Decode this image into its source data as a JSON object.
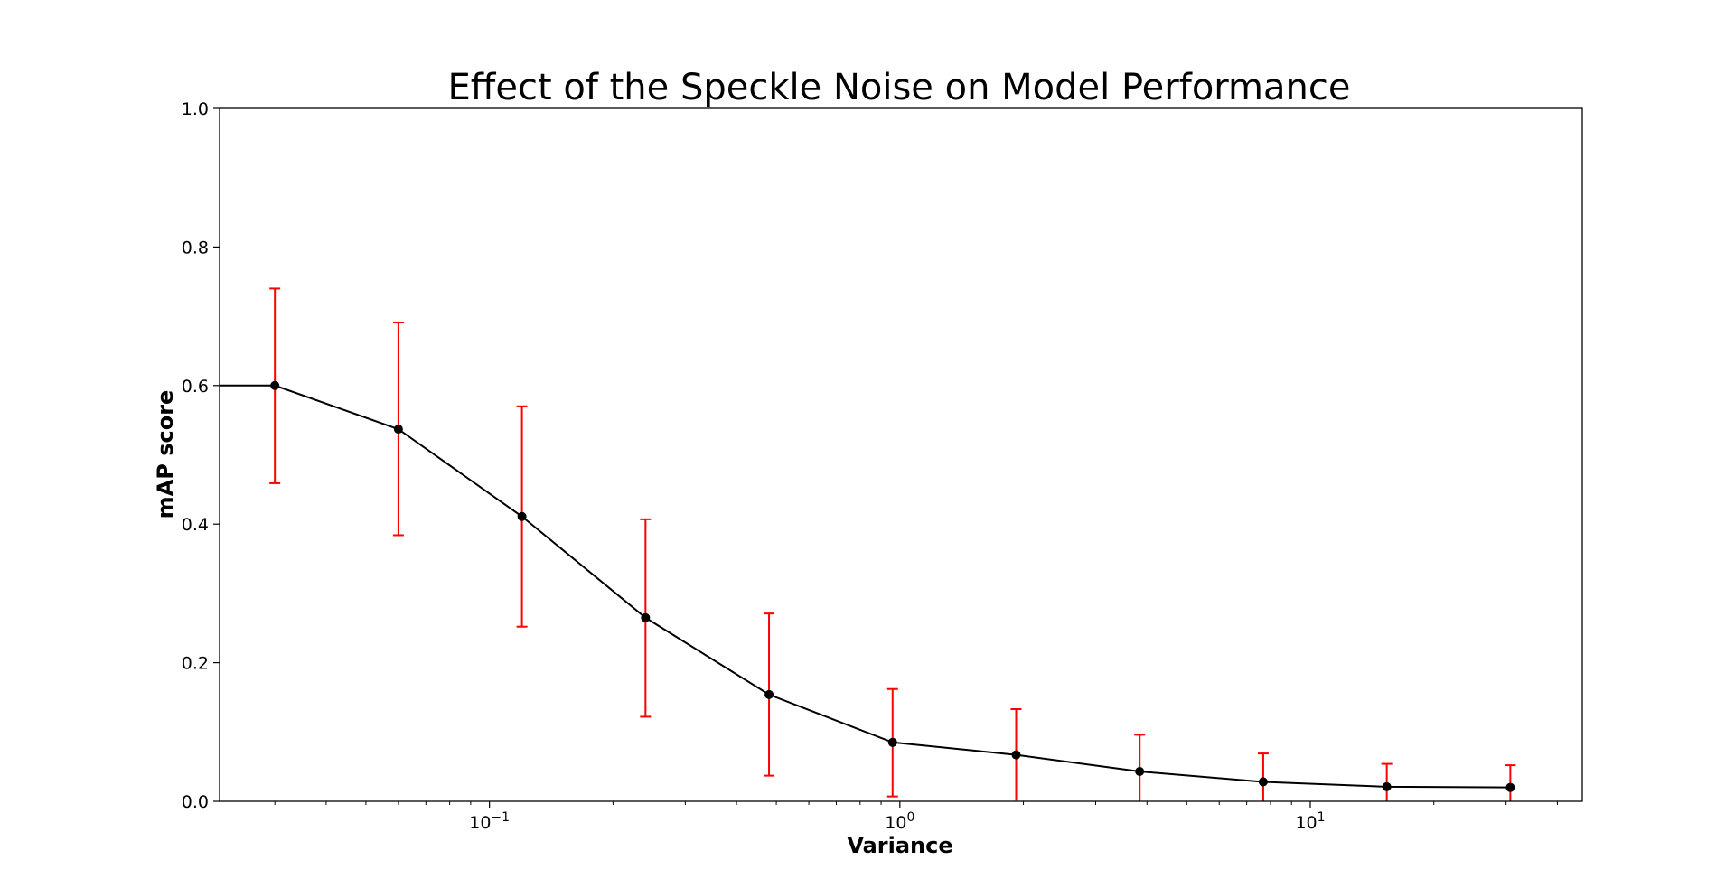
{
  "chart_data": {
    "type": "line",
    "title": "Effect of the Speckle Noise on Model Performance",
    "xlabel": "Variance",
    "ylabel": "mAP score",
    "x_scale": "log",
    "xlim": [
      0.022,
      46
    ],
    "ylim": [
      0.0,
      1.0
    ],
    "y_ticks": [
      "0.0",
      "0.2",
      "0.4",
      "0.6",
      "0.8",
      "1.0"
    ],
    "x_ticks": [
      {
        "value": 0.1,
        "base": "10",
        "exp": "−1"
      },
      {
        "value": 1,
        "base": "10",
        "exp": "0"
      },
      {
        "value": 10,
        "base": "10",
        "exp": "1"
      }
    ],
    "grid": false,
    "line_color": "#000000",
    "error_color": "#ff0000",
    "series": [
      {
        "x": [
          0.03,
          0.06,
          0.12,
          0.24,
          0.48,
          0.96,
          1.92,
          3.84,
          7.68,
          15.36,
          30.72
        ],
        "y": [
          0.6,
          0.537,
          0.411,
          0.265,
          0.154,
          0.085,
          0.067,
          0.043,
          0.028,
          0.021,
          0.02
        ],
        "y_upper": [
          0.74,
          0.691,
          0.57,
          0.407,
          0.271,
          0.162,
          0.133,
          0.096,
          0.069,
          0.054,
          0.052
        ],
        "y_lower": [
          0.459,
          0.384,
          0.252,
          0.122,
          0.037,
          0.007,
          0.001,
          0.0,
          0.0,
          0.0,
          0.0
        ]
      }
    ]
  }
}
